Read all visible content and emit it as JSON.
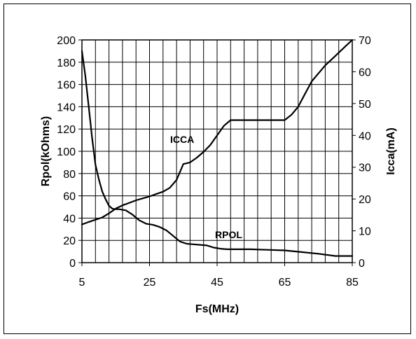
{
  "chart_data": {
    "type": "line",
    "xlabel": "Fs(MHz)",
    "ylabel_left": "Rpol(kOhms)",
    "ylabel_right": "Icca(mA)",
    "xlim": [
      5,
      85
    ],
    "ylim_left": [
      0,
      200
    ],
    "ylim_right": [
      0,
      70
    ],
    "x_ticks": [
      5,
      25,
      45,
      65,
      85
    ],
    "x_tick_labels": [
      "5",
      "25",
      "45",
      "65",
      "85"
    ],
    "y_left_ticks": [
      0,
      20,
      40,
      60,
      80,
      100,
      120,
      140,
      160,
      180,
      200
    ],
    "y_left_tick_labels": [
      "0",
      "20",
      "40",
      "60",
      "80",
      "100",
      "120",
      "140",
      "160",
      "180",
      "200"
    ],
    "y_right_ticks": [
      0,
      10,
      20,
      30,
      40,
      50,
      60,
      70
    ],
    "y_right_tick_labels": [
      "0",
      "10",
      "20",
      "30",
      "40",
      "50",
      "60",
      "70"
    ],
    "grid": true,
    "legend": "none",
    "series": [
      {
        "name": "ICCA",
        "axis": "right",
        "x": [
          5,
          7,
          9,
          11,
          13,
          15,
          17,
          19,
          21,
          23,
          25,
          27,
          29,
          31,
          33,
          35,
          37,
          39,
          41,
          43,
          45,
          47,
          49,
          51,
          55,
          60,
          65,
          67,
          69,
          71,
          73,
          75,
          77,
          79,
          81,
          83,
          85
        ],
        "values": [
          12,
          12.8,
          13.5,
          14.2,
          15.5,
          17,
          18,
          18.8,
          19.6,
          20.2,
          20.8,
          21.6,
          22.3,
          23.5,
          26,
          31,
          31.5,
          33,
          34.8,
          37,
          40,
          43,
          44.8,
          44.8,
          44.8,
          44.8,
          44.8,
          46.5,
          49,
          53,
          57,
          59.5,
          62,
          64,
          66,
          68,
          70
        ]
      },
      {
        "name": "RPOL",
        "axis": "left",
        "x": [
          5,
          6,
          7,
          8,
          9,
          10,
          11,
          12,
          13,
          14,
          15,
          16,
          18,
          20,
          22,
          24,
          26,
          28,
          30,
          32,
          34,
          36,
          38,
          40,
          42,
          44,
          46,
          48,
          50,
          55,
          60,
          65,
          70,
          75,
          80,
          85
        ],
        "values": [
          190,
          168,
          140,
          112,
          88,
          75,
          64,
          57,
          51,
          48.5,
          48,
          48,
          47,
          43,
          38,
          35,
          34,
          32,
          29,
          24,
          19,
          17,
          16.5,
          16,
          15.5,
          13.5,
          12.5,
          12,
          12,
          12,
          11.5,
          11,
          9.5,
          8,
          6,
          6
        ]
      }
    ]
  }
}
